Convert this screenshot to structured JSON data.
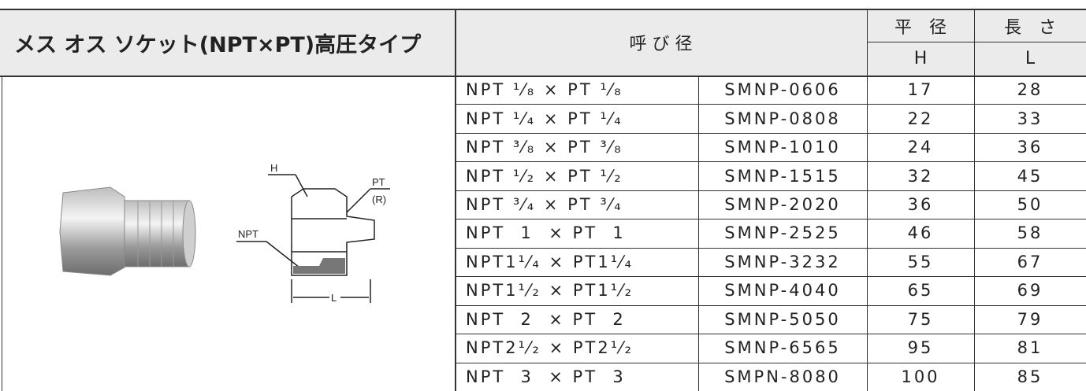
{
  "header": {
    "title": "メス オス ソケット(NPT×PT)高圧タイプ",
    "size_label": "呼 び 径",
    "width_label": "平　径",
    "length_label": "長　さ",
    "width_symbol": "H",
    "length_symbol": "L"
  },
  "diagram": {
    "h_label": "H",
    "pt_label": "PT",
    "r_label": "(R)",
    "npt_label": "NPT",
    "l_label": "L"
  },
  "table": {
    "rows": [
      [
        "NPT ¹⁄₈ × PT ¹⁄₈",
        "SMNP-0606",
        17,
        28
      ],
      [
        "NPT ¹⁄₄ × PT ¹⁄₄",
        "SMNP-0808",
        22,
        33
      ],
      [
        "NPT ³⁄₈ × PT ³⁄₈",
        "SMNP-1010",
        24,
        36
      ],
      [
        "NPT ¹⁄₂ × PT ¹⁄₂",
        "SMNP-1515",
        32,
        45
      ],
      [
        "NPT ³⁄₄ × PT ³⁄₄",
        "SMNP-2020",
        36,
        50
      ],
      [
        "NPT  1  × PT  1",
        "SMNP-2525",
        46,
        58
      ],
      [
        "NPT1¹⁄₄ × PT1¹⁄₄",
        "SMNP-3232",
        55,
        67
      ],
      [
        "NPT1¹⁄₂ × PT1¹⁄₂",
        "SMNP-4040",
        65,
        69
      ],
      [
        "NPT  2  × PT  2",
        "SMNP-5050",
        75,
        79
      ],
      [
        "NPT2¹⁄₂ × PT2¹⁄₂",
        "SMNP-6565",
        95,
        81
      ],
      [
        "NPT  3  × PT  3",
        "SMPN-8080",
        100,
        85
      ]
    ]
  }
}
